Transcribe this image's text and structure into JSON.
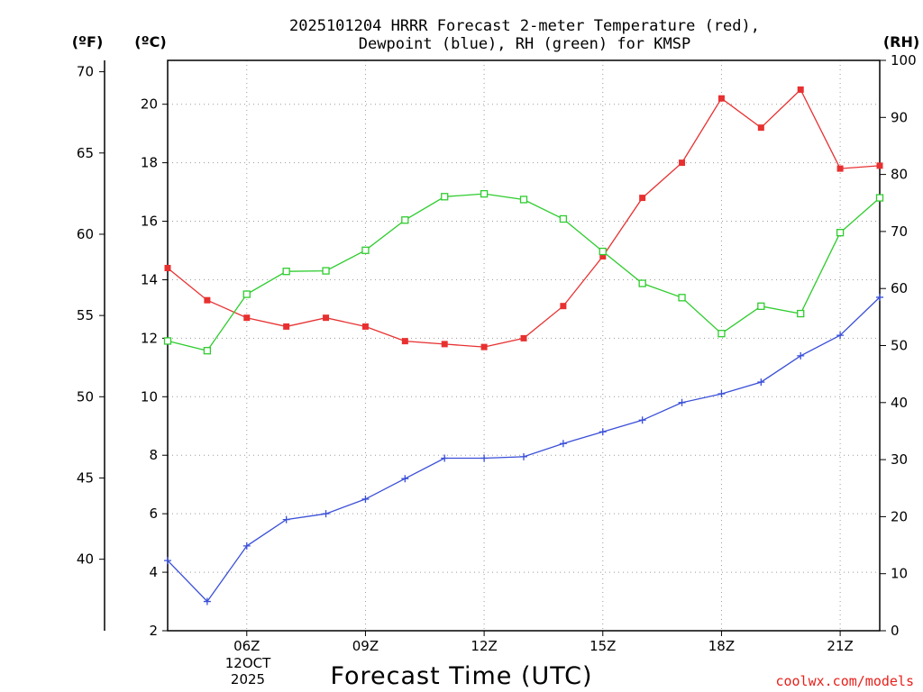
{
  "chart_data": {
    "type": "line",
    "title_lines": [
      "2025101204 HRRR Forecast 2-meter Temperature (red),",
      "Dewpoint (blue), RH (green) for KMSP"
    ],
    "xlabel": "Forecast Time (UTC)",
    "credit": "coolwx.com/models",
    "units": {
      "fahrenheit": "(ºF)",
      "celsius": "(ºC)",
      "rh": "(RH)"
    },
    "x_hours": [
      4,
      5,
      6,
      7,
      8,
      9,
      10,
      11,
      12,
      13,
      14,
      15,
      16,
      17,
      18,
      19,
      20,
      21,
      22
    ],
    "xlim": [
      4,
      22
    ],
    "x_ticks": [
      {
        "hour": 6,
        "label": "06Z"
      },
      {
        "hour": 9,
        "label": "09Z"
      },
      {
        "hour": 12,
        "label": "12Z"
      },
      {
        "hour": 15,
        "label": "15Z"
      },
      {
        "hour": 18,
        "label": "18Z"
      },
      {
        "hour": 21,
        "label": "21Z"
      }
    ],
    "date_label": [
      "12OCT",
      "2025"
    ],
    "celsius_axis": {
      "range": [
        2,
        21.5
      ],
      "ticks": [
        2,
        4,
        6,
        8,
        10,
        12,
        14,
        16,
        18,
        20
      ]
    },
    "fahrenheit_axis": {
      "ticks": [
        40,
        45,
        50,
        55,
        60,
        65,
        70
      ]
    },
    "rh_axis": {
      "range": [
        0,
        100
      ],
      "ticks": [
        0,
        10,
        20,
        30,
        40,
        50,
        60,
        70,
        80,
        90,
        100
      ]
    },
    "series": [
      {
        "name": "2-meter Temperature",
        "axis": "celsius",
        "color": "#e83030",
        "marker": "filled-square",
        "values": [
          14.4,
          13.3,
          12.7,
          12.4,
          12.7,
          12.4,
          11.9,
          11.8,
          11.7,
          12.0,
          13.1,
          14.8,
          16.8,
          18.0,
          20.2,
          19.2,
          20.5,
          17.8,
          17.9
        ]
      },
      {
        "name": "Dewpoint",
        "axis": "celsius",
        "color": "#3a4fd8",
        "marker": "plus",
        "values": [
          4.4,
          3.0,
          4.9,
          5.8,
          6.0,
          6.5,
          7.2,
          7.9,
          7.9,
          7.95,
          8.4,
          8.8,
          9.2,
          9.8,
          10.1,
          10.5,
          11.4,
          12.1,
          13.4
        ]
      },
      {
        "name": "RH",
        "axis": "rh",
        "color": "#2ecc2e",
        "marker": "open-square",
        "values": [
          50.8,
          49.1,
          59.0,
          63.0,
          63.1,
          66.7,
          72.0,
          76.1,
          76.6,
          75.6,
          72.2,
          66.5,
          60.9,
          58.4,
          52.1,
          56.9,
          55.6,
          69.8,
          75.9
        ]
      }
    ]
  }
}
